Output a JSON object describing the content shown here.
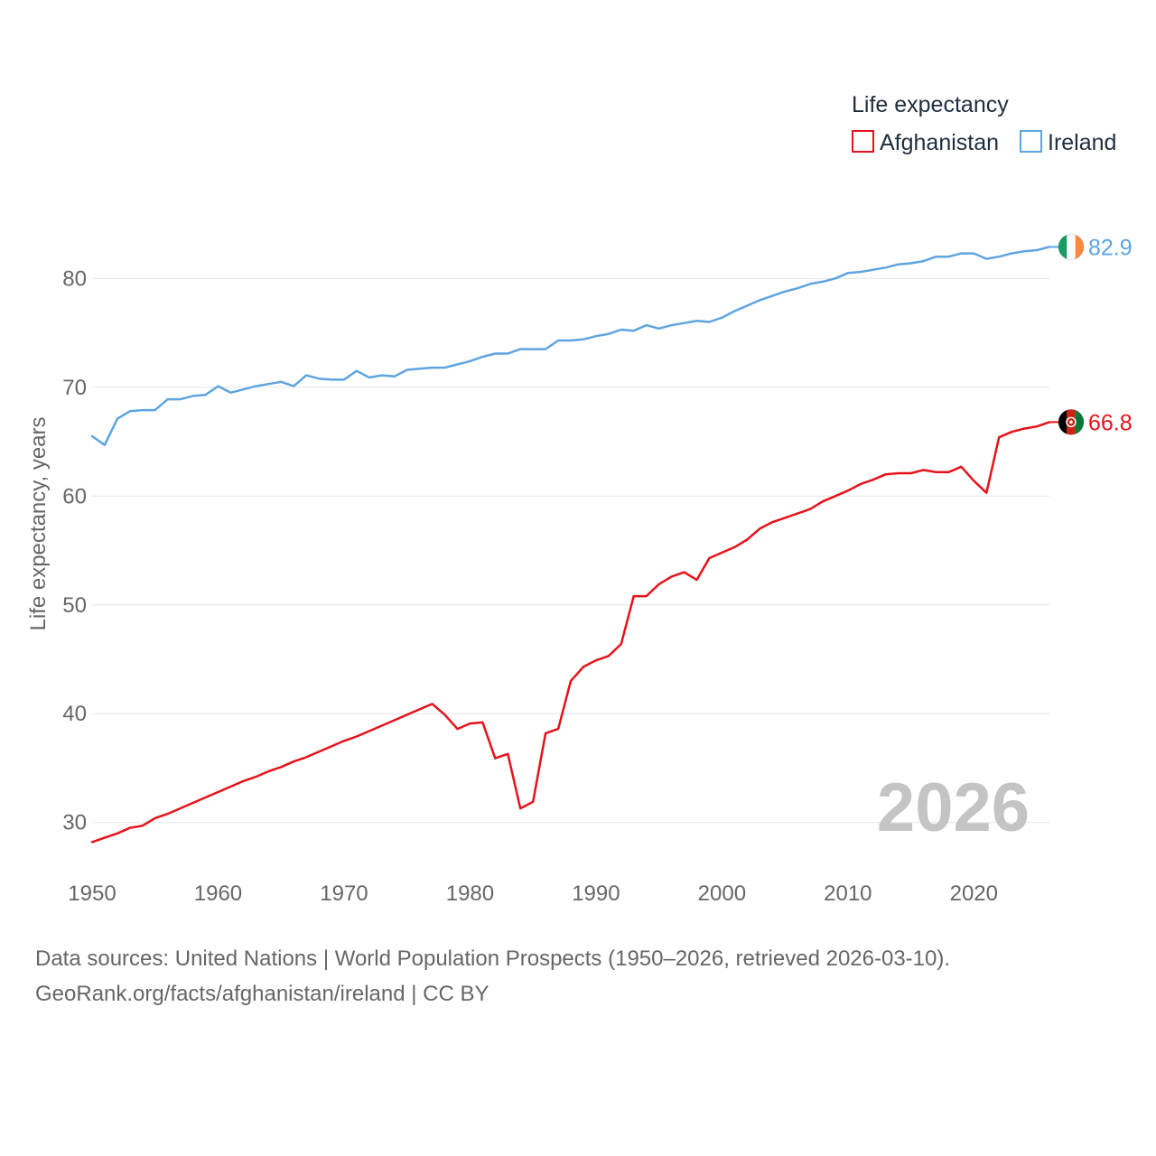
{
  "colors": {
    "afghanistan": "#e5121b",
    "ireland": "#5ea4e0",
    "grid": "#e6e6e6",
    "text": "#666666"
  },
  "chart_data": {
    "type": "line",
    "title": "",
    "xlabel": "",
    "ylabel": "Life expectancy, years",
    "xlim": [
      1950,
      2026
    ],
    "ylim": [
      24,
      87
    ],
    "xticks": [
      1950,
      1960,
      1970,
      1980,
      1990,
      2000,
      2010,
      2020
    ],
    "yticks": [
      30,
      40,
      50,
      60,
      70,
      80
    ],
    "legend": {
      "title": "Life expectancy",
      "position": "top-right"
    },
    "current_year": "2026",
    "x": [
      1950,
      1951,
      1952,
      1953,
      1954,
      1955,
      1956,
      1957,
      1958,
      1959,
      1960,
      1961,
      1962,
      1963,
      1964,
      1965,
      1966,
      1967,
      1968,
      1969,
      1970,
      1971,
      1972,
      1973,
      1974,
      1975,
      1976,
      1977,
      1978,
      1979,
      1980,
      1981,
      1982,
      1983,
      1984,
      1985,
      1986,
      1987,
      1988,
      1989,
      1990,
      1991,
      1992,
      1993,
      1994,
      1995,
      1996,
      1997,
      1998,
      1999,
      2000,
      2001,
      2002,
      2003,
      2004,
      2005,
      2006,
      2007,
      2008,
      2009,
      2010,
      2011,
      2012,
      2013,
      2014,
      2015,
      2016,
      2017,
      2018,
      2019,
      2020,
      2021,
      2022,
      2023,
      2024,
      2025,
      2026
    ],
    "series": [
      {
        "name": "Afghanistan",
        "flag": "afghanistan-flag",
        "end_label": "66.8",
        "values": [
          28.2,
          28.6,
          29.0,
          29.5,
          29.7,
          30.4,
          30.8,
          31.3,
          31.8,
          32.3,
          32.8,
          33.3,
          33.8,
          34.2,
          34.7,
          35.1,
          35.6,
          36.0,
          36.5,
          37.0,
          37.5,
          37.9,
          38.4,
          38.9,
          39.4,
          39.9,
          40.4,
          40.9,
          39.9,
          38.6,
          39.1,
          39.2,
          35.9,
          36.3,
          31.3,
          31.9,
          38.2,
          38.6,
          43.0,
          44.3,
          44.9,
          45.3,
          46.4,
          50.8,
          50.8,
          51.9,
          52.6,
          53.0,
          52.3,
          54.3,
          54.8,
          55.3,
          56.0,
          57.0,
          57.6,
          58.0,
          58.4,
          58.8,
          59.5,
          60.0,
          60.5,
          61.1,
          61.5,
          62.0,
          62.1,
          62.1,
          62.4,
          62.2,
          62.2,
          62.7,
          61.4,
          60.3,
          65.4,
          65.9,
          66.2,
          66.4,
          66.8
        ]
      },
      {
        "name": "Ireland",
        "flag": "ireland-flag",
        "end_label": "82.9",
        "values": [
          65.5,
          64.7,
          67.1,
          67.8,
          67.9,
          67.9,
          68.9,
          68.9,
          69.2,
          69.3,
          70.1,
          69.5,
          69.8,
          70.1,
          70.3,
          70.5,
          70.1,
          71.1,
          70.8,
          70.7,
          70.7,
          71.5,
          70.9,
          71.1,
          71.0,
          71.6,
          71.7,
          71.8,
          71.8,
          72.1,
          72.4,
          72.8,
          73.1,
          73.1,
          73.5,
          73.5,
          73.5,
          74.3,
          74.3,
          74.4,
          74.7,
          74.9,
          75.3,
          75.2,
          75.7,
          75.4,
          75.7,
          75.9,
          76.1,
          76.0,
          76.4,
          77.0,
          77.5,
          78.0,
          78.4,
          78.8,
          79.1,
          79.5,
          79.7,
          80.0,
          80.5,
          80.6,
          80.8,
          81.0,
          81.3,
          81.4,
          81.6,
          82.0,
          82.0,
          82.3,
          82.3,
          81.8,
          82.0,
          82.3,
          82.5,
          82.6,
          82.9
        ]
      }
    ]
  },
  "footer": {
    "source_line": "Data sources: United Nations | World Population Prospects (1950–2026, retrieved 2026-03-10).",
    "url_line": "GeoRank.org/facts/afghanistan/ireland | CC BY"
  }
}
